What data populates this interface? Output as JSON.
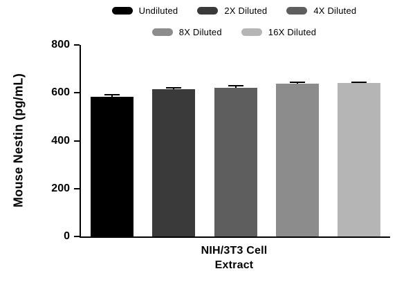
{
  "chart_data": {
    "type": "bar",
    "title": "",
    "ylabel": "Mouse Nestin (pg/mL)",
    "xlabel_lines": [
      "NIH/3T3 Cell",
      "Extract"
    ],
    "ylim": [
      0,
      800
    ],
    "yticks": [
      0,
      200,
      400,
      600,
      800
    ],
    "grid": false,
    "legend_position": "top",
    "categories": [
      "Undiluted",
      "2X Diluted",
      "4X Diluted",
      "8X Diluted",
      "16X Diluted"
    ],
    "series": [
      {
        "name": "Undiluted",
        "value": 583,
        "error": 8,
        "color": "#000000"
      },
      {
        "name": "2X Diluted",
        "value": 616,
        "error": 5,
        "color": "#3a3a3a"
      },
      {
        "name": "4X Diluted",
        "value": 622,
        "error": 7,
        "color": "#5e5e5e"
      },
      {
        "name": "8X Diluted",
        "value": 638,
        "error": 5,
        "color": "#8c8c8c"
      },
      {
        "name": "16X Diluted",
        "value": 640,
        "error": 4,
        "color": "#b5b5b5"
      }
    ],
    "error_bar_color": "#000000"
  }
}
